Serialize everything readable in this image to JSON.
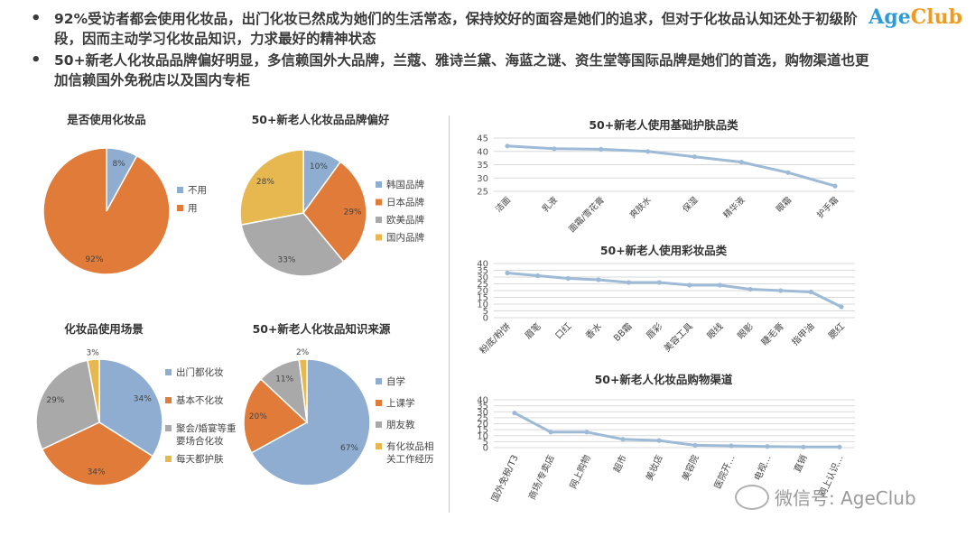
{
  "bullets": [
    "92%受访者都会使用化妆品，出门化妆已然成为她们的生活常态，保持姣好的面容是她们的追求，但对于化妆品认知还处于初级阶段，因而主动学习化妆品知识，力求最好的精神状态",
    "50+新老人化妆品品牌偏好明显，多信赖国外大品牌，兰蔻、雅诗兰黛、海蓝之谜、资生堂等国际品牌是她们的首选，购物渠道也更加信赖国外免税店以及国内专柜"
  ],
  "logo": {
    "age": "Age",
    "club": "Club"
  },
  "watermark": "微信号: AgeClub",
  "colors": {
    "blue": "#8eadd0",
    "orange": "#e07b39",
    "gray": "#a9a9a9",
    "gold": "#e6b84f",
    "line": "#9dbad7"
  },
  "chart_data": [
    {
      "type": "pie",
      "title": "是否使用化妆品",
      "categories": [
        "不用",
        "用"
      ],
      "values": [
        8,
        92
      ],
      "data_labels": [
        "8%",
        "92%"
      ],
      "legend": "right"
    },
    {
      "type": "pie",
      "title": "50+新老人化妆品品牌偏好",
      "categories": [
        "韩国品牌",
        "日本品牌",
        "欧美品牌",
        "国内品牌"
      ],
      "values": [
        10,
        29,
        33,
        28
      ],
      "data_labels": [
        "10%",
        "29%",
        "33%",
        "28%"
      ],
      "legend": "right"
    },
    {
      "type": "pie",
      "title": "化妆品使用场景",
      "categories": [
        "出门都化妆",
        "基本不化妆",
        "聚会/婚宴等重要场合化妆",
        "每天都护肤"
      ],
      "values": [
        34,
        34,
        29,
        3
      ],
      "data_labels": [
        "34%",
        "34%",
        "29%",
        "3%"
      ],
      "legend": "right"
    },
    {
      "type": "pie",
      "title": "50+新老人化妆品知识来源",
      "categories": [
        "自学",
        "上课学",
        "朋友教",
        "有化妆品相关工作经历"
      ],
      "values": [
        67,
        20,
        11,
        2
      ],
      "data_labels": [
        "67%",
        "20%",
        "11%",
        "2%"
      ],
      "legend": "right"
    },
    {
      "type": "line",
      "title": "50+新老人使用基础护肤品类",
      "categories": [
        "洁面",
        "乳液",
        "面霜/雪花膏",
        "爽肤水",
        "保湿",
        "精华液",
        "眼霜",
        "护手霜"
      ],
      "values": [
        42,
        41,
        40.8,
        40,
        38,
        36,
        32,
        27
      ],
      "ylim": [
        25,
        45
      ],
      "yticks": [
        25,
        30,
        35,
        40,
        45
      ],
      "grid": true
    },
    {
      "type": "line",
      "title": "50+新老人使用彩妆品类",
      "categories": [
        "粉底/粉饼",
        "眉笔",
        "口红",
        "香水",
        "BB霜",
        "唇彩",
        "美容工具",
        "眼线",
        "眼影",
        "睫毛膏",
        "指甲油",
        "腮红"
      ],
      "values": [
        33,
        31,
        29,
        28,
        26,
        26,
        24,
        24,
        21,
        20,
        19,
        8
      ],
      "ylim": [
        0,
        40
      ],
      "yticks": [
        0,
        5,
        10,
        15,
        20,
        25,
        30,
        35,
        40
      ],
      "grid": true
    },
    {
      "type": "line",
      "title": "50+新老人化妆品购物渠道",
      "categories": [
        "国外免税/T3",
        "商场/专卖店",
        "网上购物",
        "超市",
        "美妆店",
        "美容院",
        "医院开…",
        "电视…",
        "直销",
        "网上认识…"
      ],
      "values": [
        29,
        13,
        13,
        7,
        6,
        2,
        1.5,
        1,
        0.5,
        0.5
      ],
      "ylim": [
        0,
        40
      ],
      "yticks": [
        0,
        5,
        10,
        15,
        20,
        25,
        30,
        35,
        40
      ],
      "grid": true
    }
  ]
}
